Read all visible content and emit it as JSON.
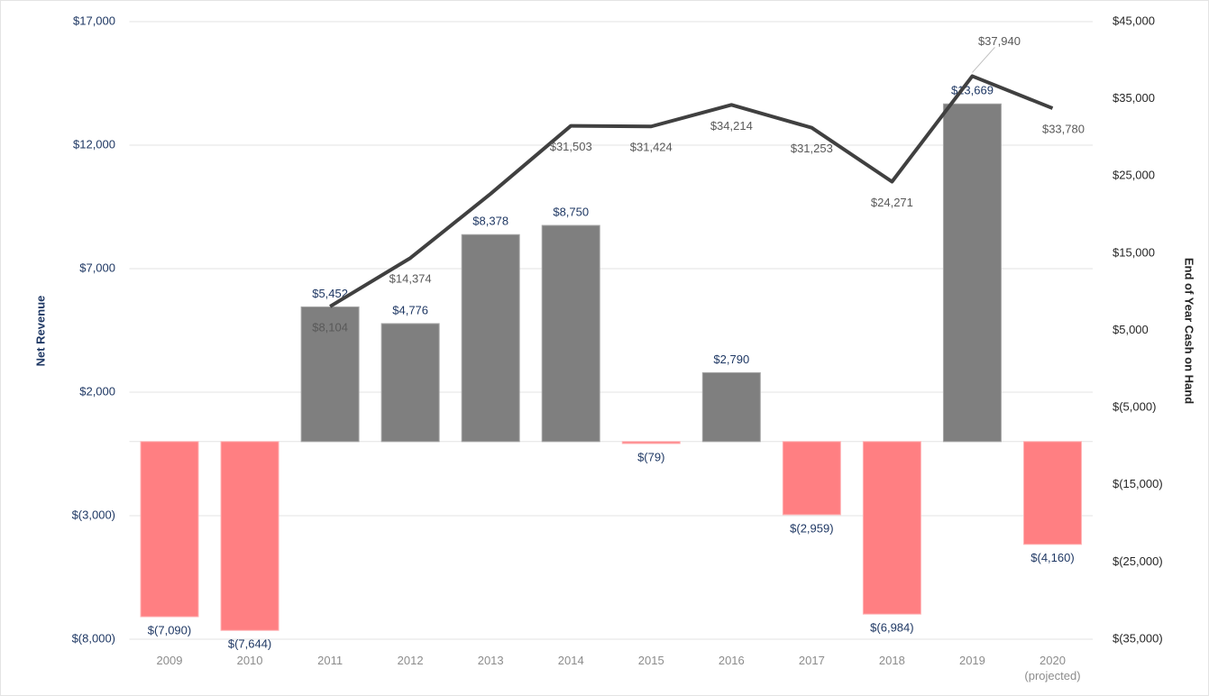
{
  "chart_data": {
    "type": "bar+line",
    "ylabel": "Net Revenue",
    "y2label": "End of Year Cash on Hand",
    "categories": [
      "2009",
      "2010",
      "2011",
      "2012",
      "2013",
      "2014",
      "2015",
      "2016",
      "2017",
      "2018",
      "2019",
      "2020 (projected)"
    ],
    "series": [
      {
        "type": "bar",
        "color": "#7f7f7f",
        "negative_color": "#ff7f82",
        "values": [
          -7090,
          -7644,
          5452,
          4776,
          8378,
          8750,
          -79,
          2790,
          -2959,
          -6984,
          13669,
          -4160
        ],
        "value_labels": [
          "$(7,090)",
          "$(7,644)",
          "$5,452",
          "$4,776",
          "$8,378",
          "$8,750",
          "$(79)",
          "$2,790",
          "$(2,959)",
          "$(6,984)",
          "$13,669",
          "$(4,160)"
        ]
      },
      {
        "type": "line",
        "axis": "y2",
        "color": "#404040",
        "values": [
          null,
          null,
          8104,
          14374,
          22700,
          31503,
          31424,
          34214,
          31253,
          24271,
          37940,
          33780
        ],
        "value_labels": [
          null,
          null,
          "$8,104",
          "$14,374",
          null,
          "$31,503",
          "$31,424",
          "$34,214",
          "$31,253",
          "$24,271",
          "$37,940",
          "$33,780"
        ]
      }
    ],
    "ylim": [
      -8000,
      17000
    ],
    "yticks": [
      {
        "value": -8000,
        "label": "$(8,000)"
      },
      {
        "value": -3000,
        "label": "$(3,000)"
      },
      {
        "value": 2000,
        "label": "$2,000"
      },
      {
        "value": 7000,
        "label": "$7,000"
      },
      {
        "value": 12000,
        "label": "$12,000"
      },
      {
        "value": 17000,
        "label": "$17,000"
      }
    ],
    "y2lim": [
      -35000,
      45000
    ],
    "y2ticks": [
      {
        "value": -35000,
        "label": "$(35,000)"
      },
      {
        "value": -25000,
        "label": "$(25,000)"
      },
      {
        "value": -15000,
        "label": "$(15,000)"
      },
      {
        "value": -5000,
        "label": "$(5,000)"
      },
      {
        "value": 5000,
        "label": "$5,000"
      },
      {
        "value": 15000,
        "label": "$15,000"
      },
      {
        "value": 25000,
        "label": "$25,000"
      },
      {
        "value": 35000,
        "label": "$35,000"
      },
      {
        "value": 45000,
        "label": "$45,000"
      }
    ],
    "grid": true
  }
}
